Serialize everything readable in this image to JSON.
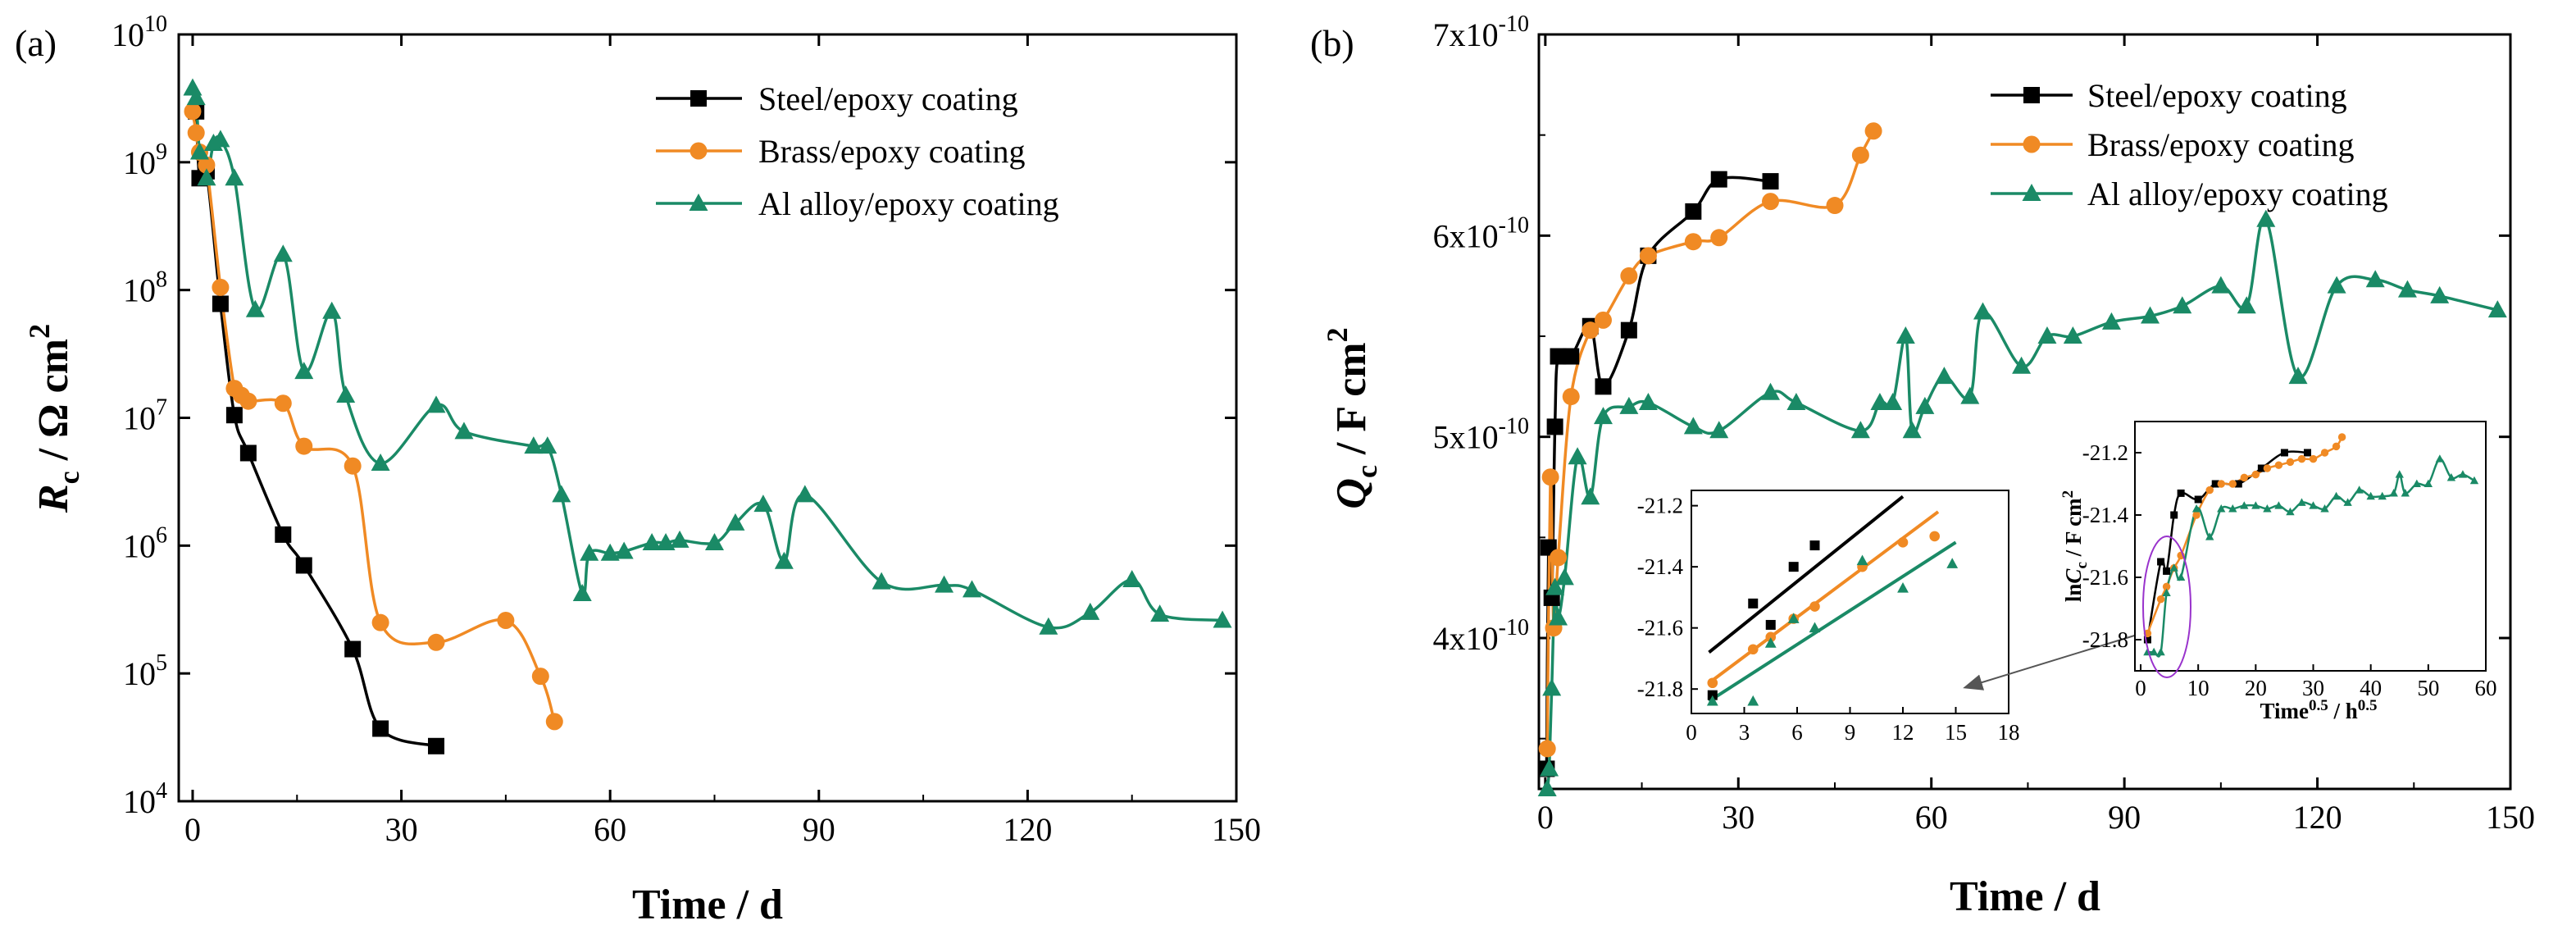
{
  "colors": {
    "steel": "#000000",
    "brass": "#f08a24",
    "al": "#1a8a66",
    "ellipse": "#9933cc"
  },
  "chart_data": [
    {
      "type": "scatter",
      "panel": "(a)",
      "xlabel": "Time / d",
      "ylabel": "R_c / Ω cm^2",
      "yscale": "log",
      "xlim": [
        -2,
        150
      ],
      "xticks": [
        "0",
        "30",
        "60",
        "90",
        "120",
        "150"
      ],
      "ylim": [
        10000.0,
        10000000000.0
      ],
      "yticks": [
        "10^4",
        "10^5",
        "10^6",
        "10^7",
        "10^8",
        "10^9",
        "10^10"
      ],
      "legend": [
        "Steel/epoxy coating",
        "Brass/epoxy coating",
        "Al alloy/epoxy coating"
      ],
      "series": [
        {
          "name": "Steel/epoxy coating",
          "x": [
            0.5,
            1,
            2,
            4,
            6,
            8,
            13,
            16,
            23,
            27,
            35
          ],
          "y": [
            2500000000.0,
            750000000.0,
            850000000.0,
            78000000.0,
            10500000.0,
            5300000.0,
            1220000.0,
            700000.0,
            155000.0,
            37000.0,
            27000.0
          ]
        },
        {
          "name": "Brass/epoxy coating",
          "x": [
            0,
            0.5,
            1,
            2,
            4,
            6,
            7,
            8,
            13,
            16,
            23,
            27,
            35,
            45,
            50,
            52
          ],
          "y": [
            2500000000.0,
            1700000000.0,
            1200000000.0,
            950000000.0,
            105000000.0,
            17000000.0,
            15000000.0,
            13500000.0,
            13000000.0,
            6000000.0,
            4200000.0,
            250000.0,
            175000.0,
            260000.0,
            95000.0,
            42000.0
          ]
        },
        {
          "name": "Al alloy/epoxy coating",
          "x": [
            0,
            0.5,
            1,
            2,
            3,
            4,
            6,
            9,
            13,
            16,
            20,
            22,
            27,
            35,
            39,
            49,
            51,
            53,
            56,
            57,
            60,
            62,
            66,
            68,
            70,
            75,
            78,
            82,
            85,
            88,
            99,
            108,
            112,
            123,
            129,
            135,
            139,
            148
          ],
          "y": [
            3800000000.0,
            3200000000.0,
            1200000000.0,
            750000000.0,
            1400000000.0,
            1500000000.0,
            750000000.0,
            70000000.0,
            190000000.0,
            23000000.0,
            68000000.0,
            15000000.0,
            4400000.0,
            12500000.0,
            7800000.0,
            6000000.0,
            6000000.0,
            2500000.0,
            420000.0,
            870000.0,
            870000.0,
            900000.0,
            1050000.0,
            1050000.0,
            1100000.0,
            1050000.0,
            1500000.0,
            2100000.0,
            750000.0,
            2500000.0,
            520000.0,
            490000.0,
            450000.0,
            230000.0,
            300000.0,
            540000.0,
            290000.0,
            260000.0
          ]
        }
      ]
    },
    {
      "type": "scatter",
      "panel": "(b)",
      "xlabel": "Time / d",
      "ylabel": "Q_c / F cm^2",
      "xlim": [
        -1,
        150
      ],
      "xticks": [
        "0",
        "30",
        "60",
        "90",
        "120",
        "150"
      ],
      "ylim": [
        3.25e-10,
        7e-10
      ],
      "yticks": [
        "4x10^-10",
        "5x10^-10",
        "6x10^-10",
        "7x10^-10"
      ],
      "legend": [
        "Steel/epoxy coating",
        "Brass/epoxy coating",
        "Al alloy/epoxy coating"
      ],
      "series": [
        {
          "name": "Steel/epoxy coating",
          "x": [
            0.2,
            0.5,
            1,
            1.5,
            2,
            4,
            7,
            9,
            13,
            16,
            23,
            27,
            35
          ],
          "y": [
            3.35e-10,
            4.45e-10,
            4.2e-10,
            5.05e-10,
            5.4e-10,
            5.4e-10,
            5.55e-10,
            5.25e-10,
            5.53e-10,
            5.9e-10,
            6.12e-10,
            6.28e-10,
            6.27e-10
          ]
        },
        {
          "name": "Brass/epoxy coating",
          "x": [
            0.3,
            0.8,
            1.3,
            2,
            4,
            7,
            9,
            13,
            16,
            23,
            27,
            35,
            45,
            49,
            51
          ],
          "y": [
            3.45e-10,
            4.8e-10,
            4.05e-10,
            4.4e-10,
            5.2e-10,
            5.53e-10,
            5.58e-10,
            5.8e-10,
            5.9e-10,
            5.97e-10,
            5.99e-10,
            6.17e-10,
            6.15e-10,
            6.4e-10,
            6.52e-10
          ]
        },
        {
          "name": "Al alloy/epoxy coating",
          "x": [
            0.3,
            0.6,
            1,
            1.5,
            2,
            3,
            5,
            7,
            9,
            13,
            16,
            23,
            27,
            35,
            39,
            49,
            52,
            54,
            56,
            57,
            59,
            62,
            66,
            68,
            74,
            78,
            82,
            88,
            94,
            99,
            105,
            109,
            112,
            117,
            123,
            129,
            134,
            139,
            148
          ],
          "y": [
            3.25e-10,
            3.35e-10,
            3.75e-10,
            4.25e-10,
            4.1e-10,
            4.3e-10,
            4.9e-10,
            4.7e-10,
            5.1e-10,
            5.15e-10,
            5.17e-10,
            5.05e-10,
            5.03e-10,
            5.22e-10,
            5.17e-10,
            5.03e-10,
            5.17e-10,
            5.17e-10,
            5.5e-10,
            5.03e-10,
            5.15e-10,
            5.3e-10,
            5.2e-10,
            5.62e-10,
            5.35e-10,
            5.5e-10,
            5.5e-10,
            5.57e-10,
            5.6e-10,
            5.65e-10,
            5.75e-10,
            5.65e-10,
            6.08e-10,
            5.3e-10,
            5.75e-10,
            5.78e-10,
            5.73e-10,
            5.7e-10,
            5.63e-10
          ]
        }
      ]
    },
    {
      "type": "scatter",
      "panel": "inset-linear",
      "xlim": [
        0,
        18
      ],
      "xticks": [
        "0",
        "3",
        "6",
        "9",
        "12",
        "15",
        "18"
      ],
      "ylim": [
        -21.88,
        -21.15
      ],
      "yticks": [
        "-21.2",
        "-21.4",
        "-21.6",
        "-21.8"
      ],
      "series": [
        {
          "name": "Steel/epoxy coating",
          "x": [
            1.2,
            3.5,
            4.5,
            5.8,
            7
          ],
          "y": [
            -21.82,
            -21.52,
            -21.59,
            -21.4,
            -21.33
          ],
          "fit": [
            [
              1,
              -21.68
            ],
            [
              12,
              -21.17
            ]
          ]
        },
        {
          "name": "Brass/epoxy coating",
          "x": [
            1.2,
            3.5,
            4.5,
            5.8,
            7,
            9.7,
            12,
            13.8
          ],
          "y": [
            -21.78,
            -21.67,
            -21.63,
            -21.57,
            -21.53,
            -21.4,
            -21.32,
            -21.3
          ],
          "fit": [
            [
              1,
              -21.78
            ],
            [
              14,
              -21.22
            ]
          ]
        },
        {
          "name": "Al alloy/epoxy coating",
          "x": [
            1.2,
            3.5,
            4.5,
            5.8,
            7,
            9.7,
            12,
            14.8
          ],
          "y": [
            -21.84,
            -21.84,
            -21.65,
            -21.57,
            -21.6,
            -21.38,
            -21.47,
            -21.39
          ],
          "fit": [
            [
              1,
              -21.84
            ],
            [
              15,
              -21.32
            ]
          ]
        }
      ]
    },
    {
      "type": "scatter",
      "panel": "inset-full",
      "xlabel": "Time^0.5 / h^0.5",
      "ylabel": "lnC_c / F cm^2",
      "xlim": [
        -1,
        60
      ],
      "xticks": [
        "0",
        "10",
        "20",
        "30",
        "40",
        "50",
        "60"
      ],
      "ylim": [
        -21.9,
        -21.1
      ],
      "yticks": [
        "-21.2",
        "-21.4",
        "-21.6",
        "-21.8"
      ],
      "series": [
        {
          "name": "Steel/epoxy coating",
          "x": [
            1.2,
            3.5,
            4.5,
            5.8,
            7,
            10,
            13,
            17,
            21,
            25,
            29
          ],
          "y": [
            -21.8,
            -21.55,
            -21.58,
            -21.4,
            -21.33,
            -21.35,
            -21.3,
            -21.3,
            -21.25,
            -21.2,
            -21.2
          ]
        },
        {
          "name": "Brass/epoxy coating",
          "x": [
            1.2,
            3.5,
            4.5,
            5.8,
            7,
            9.7,
            12,
            14,
            16,
            18,
            20,
            22,
            24,
            26,
            28,
            30,
            32,
            34,
            35
          ],
          "y": [
            -21.78,
            -21.67,
            -21.63,
            -21.57,
            -21.53,
            -21.4,
            -21.32,
            -21.3,
            -21.3,
            -21.28,
            -21.27,
            -21.25,
            -21.24,
            -21.23,
            -21.22,
            -21.22,
            -21.2,
            -21.18,
            -21.15
          ]
        },
        {
          "name": "Al alloy/epoxy coating",
          "x": [
            1.2,
            2.3,
            3.5,
            4.5,
            5.8,
            7,
            9.7,
            12,
            14,
            16,
            18,
            20,
            22,
            24,
            26,
            28,
            30,
            32,
            34,
            36,
            38,
            40,
            42,
            44,
            45,
            46,
            48,
            50,
            52,
            54,
            56,
            58
          ],
          "y": [
            -21.84,
            -21.84,
            -21.84,
            -21.65,
            -21.57,
            -21.6,
            -21.38,
            -21.47,
            -21.38,
            -21.38,
            -21.37,
            -21.37,
            -21.38,
            -21.37,
            -21.39,
            -21.36,
            -21.37,
            -21.38,
            -21.34,
            -21.36,
            -21.32,
            -21.34,
            -21.34,
            -21.33,
            -21.27,
            -21.33,
            -21.3,
            -21.3,
            -21.22,
            -21.28,
            -21.27,
            -21.29
          ]
        }
      ]
    }
  ],
  "panels": {
    "a": {
      "label": "(a)",
      "xlabel": "Time / d",
      "ylabel_main": "R",
      "ylabel_sub": "c",
      "ylabel_unit": " / Ω cm",
      "ylabel_sup": "2"
    },
    "b": {
      "label": "(b)",
      "xlabel": "Time / d",
      "ylabel_main": "Q",
      "ylabel_sub": "c",
      "ylabel_unit": " / F cm",
      "ylabel_sup": "2"
    },
    "inset2": {
      "xlabel_main": "Time",
      "xlabel_sup": "0.5",
      "xlabel_mid": " / h",
      "xlabel_sup2": "0.5",
      "ylabel_main": "ln",
      "ylabel_C": "C",
      "ylabel_sub": "c",
      "ylabel_unit": " / F cm",
      "ylabel_sup": "2"
    }
  }
}
